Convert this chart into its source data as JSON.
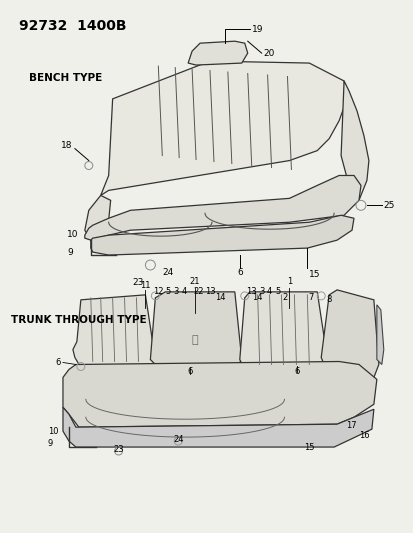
{
  "title": "92732  1400B",
  "bg_color": "#f0f0eb",
  "bench_label": "BENCH TYPE",
  "trunk_label": "TRUNK THROUGH TYPE",
  "figsize": [
    4.14,
    5.33
  ],
  "dpi": 100
}
